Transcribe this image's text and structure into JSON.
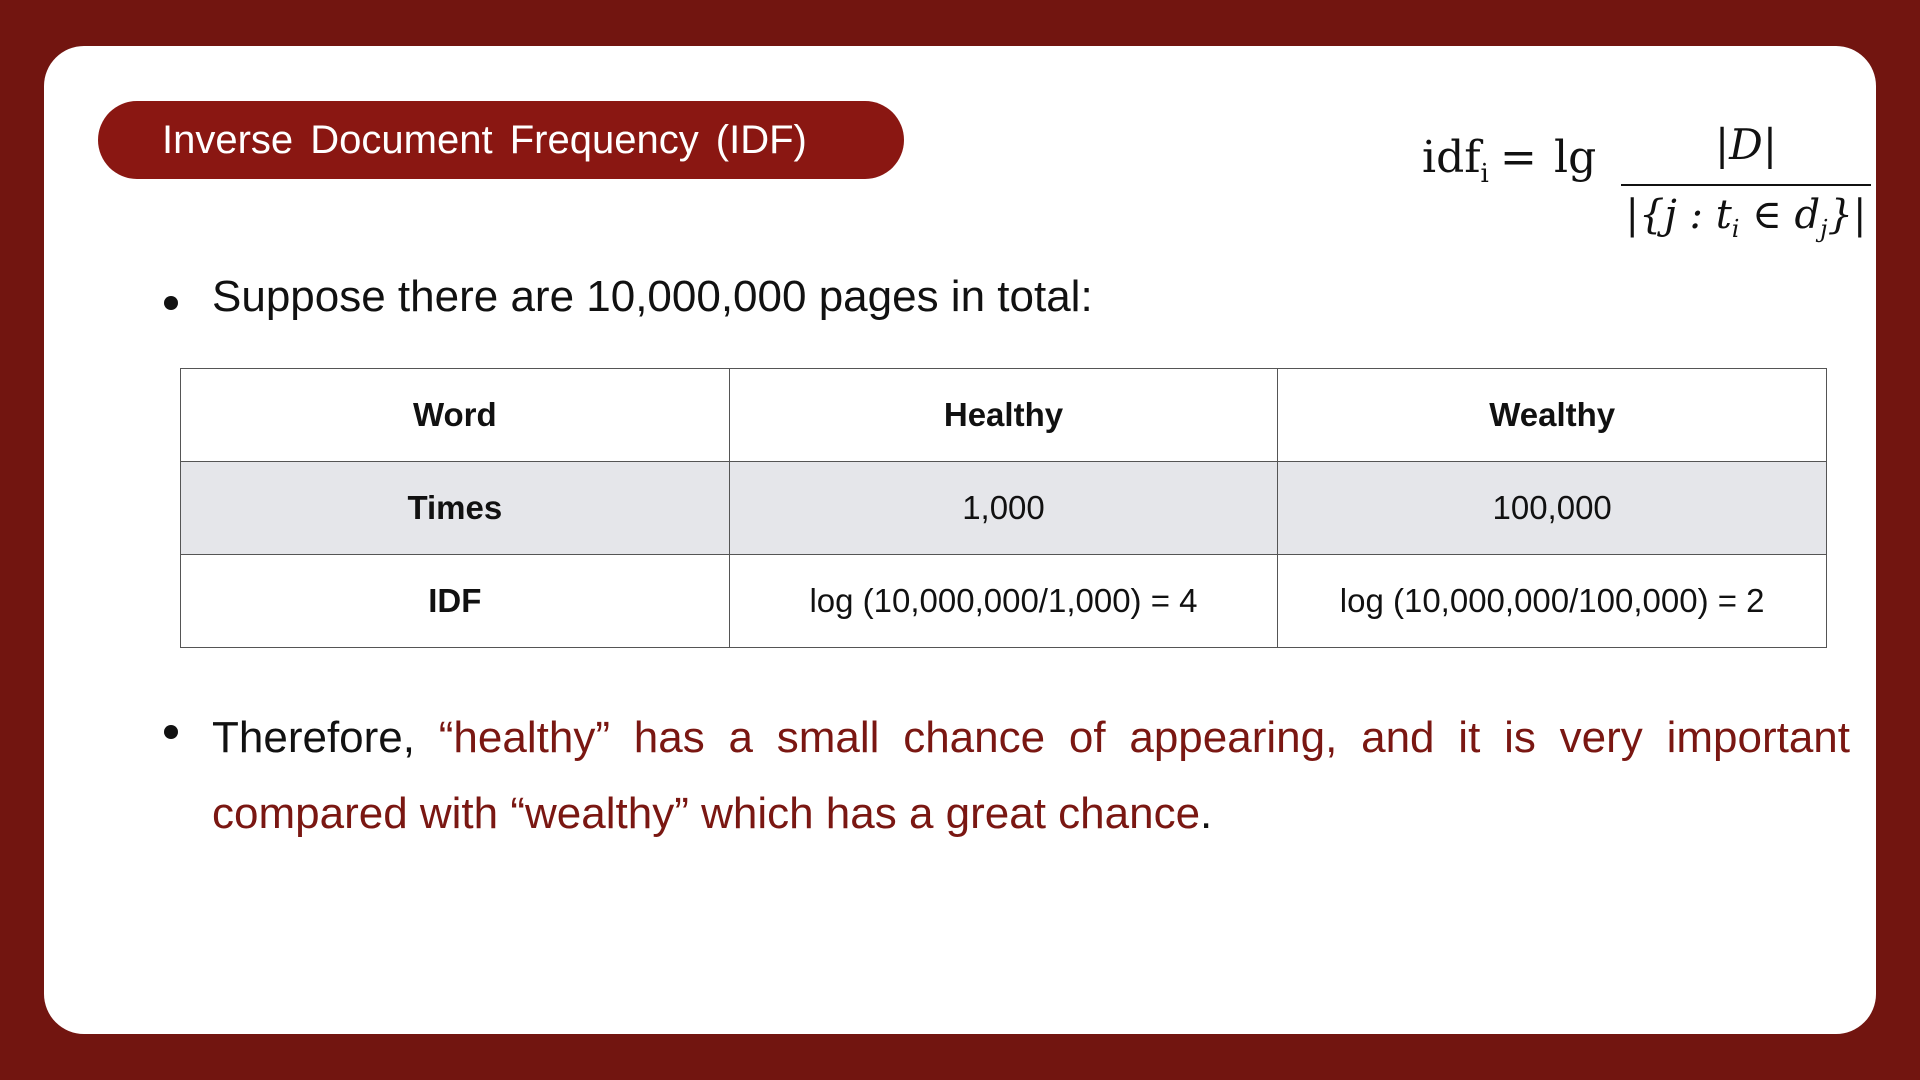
{
  "title": "Inverse Document Frequency (IDF)",
  "formula": {
    "lhs_main": "idf",
    "lhs_sub": "i",
    "equals": "=",
    "op": "lg",
    "numerator": "|D|",
    "denominator_main": "|{j : t",
    "denominator_sub1": "i",
    "denominator_mid": " ∈ d",
    "denominator_sub2": "j",
    "denominator_end": "}|"
  },
  "bullet1": "Suppose there are 10,000,000 pages in total:",
  "table": {
    "header": [
      "Word",
      "Healthy",
      "Wealthy"
    ],
    "row_times": [
      "Times",
      "1,000",
      "100,000"
    ],
    "row_idf": [
      "IDF",
      "log (10,000,000/1,000) = 4",
      "log (10,000,000/100,000) = 2"
    ]
  },
  "bullet2": {
    "prefix": "Therefore, ",
    "highlight": "“healthy” has a small chance of appearing, and it is very important compared with “wealthy” which has a great chance",
    "suffix": "."
  },
  "colors": {
    "background": "#721510",
    "accent": "#8a1712",
    "highlight_text": "#7a1712",
    "table_shade": "#e5e6ea"
  }
}
